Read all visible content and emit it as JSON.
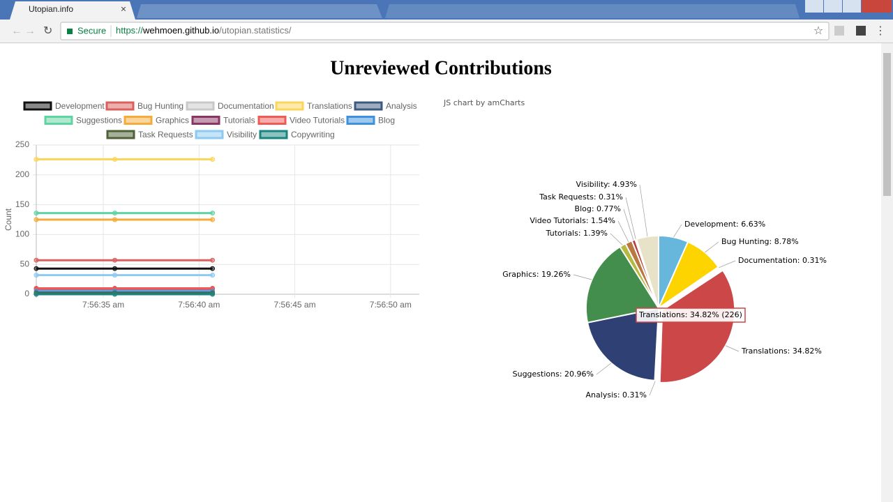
{
  "browser": {
    "tab_title": "Utopian.info",
    "secure": "Secure",
    "url_scheme": "https://",
    "url_host": "wehmoen.github.io",
    "url_path": "/utopian.statistics/"
  },
  "title": "Unreviewed Contributions",
  "credit": "JS chart by amCharts",
  "chart_data": [
    {
      "type": "line",
      "y_label": "Count",
      "x": [
        31.5,
        35.6,
        40.7
      ],
      "xlim": [
        31.5,
        51.5
      ],
      "xticks": [
        {
          "value": 35,
          "label": "7:56:35 am"
        },
        {
          "value": 40,
          "label": "7:56:40 am"
        },
        {
          "value": 45,
          "label": "7:56:45 am"
        },
        {
          "value": 50,
          "label": "7:56:50 am"
        }
      ],
      "ylim": [
        0,
        250
      ],
      "yticks": [
        0,
        50,
        100,
        150,
        200,
        250
      ],
      "grid": true,
      "series": [
        {
          "name": "Development",
          "color": "#111111",
          "values": [
            43,
            43,
            43
          ]
        },
        {
          "name": "Bug Hunting",
          "color": "#d9605c",
          "values": [
            57,
            57,
            57
          ]
        },
        {
          "name": "Documentation",
          "color": "#c8c8c8",
          "values": [
            2,
            2,
            2
          ]
        },
        {
          "name": "Translations",
          "color": "#fcd55a",
          "values": [
            226,
            226,
            226
          ]
        },
        {
          "name": "Analysis",
          "color": "#3c5a7f",
          "values": [
            2,
            2,
            2
          ]
        },
        {
          "name": "Suggestions",
          "color": "#5fd4a2",
          "values": [
            136,
            136,
            136
          ]
        },
        {
          "name": "Graphics",
          "color": "#f5ab3c",
          "values": [
            125,
            125,
            125
          ]
        },
        {
          "name": "Tutorials",
          "color": "#8a3563",
          "values": [
            9,
            9,
            9
          ]
        },
        {
          "name": "Video Tutorials",
          "color": "#ee5a55",
          "values": [
            10,
            10,
            10
          ]
        },
        {
          "name": "Blog",
          "color": "#3e92dc",
          "values": [
            5,
            5,
            5
          ]
        },
        {
          "name": "Task Requests",
          "color": "#4f6235",
          "values": [
            2,
            2,
            2
          ]
        },
        {
          "name": "Visibility",
          "color": "#8ec9f2",
          "values": [
            32,
            32,
            32
          ]
        },
        {
          "name": "Copywriting",
          "color": "#1a8580",
          "values": [
            0,
            0,
            0
          ]
        }
      ]
    },
    {
      "type": "pie",
      "categories": [
        "Development",
        "Bug Hunting",
        "Documentation",
        "Translations",
        "Analysis",
        "Suggestions",
        "Graphics",
        "Tutorials",
        "Video Tutorials",
        "Blog",
        "Task Requests",
        "Visibility"
      ],
      "values": [
        6.63,
        8.78,
        0.31,
        34.82,
        0.31,
        20.96,
        19.26,
        1.39,
        1.54,
        0.77,
        0.31,
        4.93
      ],
      "value_labels": [
        "Development: 6.63%",
        "Bug Hunting: 8.78%",
        "Documentation: 0.31%",
        "Translations: 34.82%",
        "Analysis: 0.31%",
        "Suggestions: 20.96%",
        "Graphics: 19.26%",
        "Tutorials: 1.39%",
        "Video Tutorials: 1.54%",
        "Blog: 0.77%",
        "Task Requests: 0.31%",
        "Visibility: 4.93%"
      ],
      "colors": [
        "#67b7dc",
        "#fdd400",
        "#84b761",
        "#cc4748",
        "#cd82ad",
        "#2f4074",
        "#448e4d",
        "#b7b83f",
        "#b9783f",
        "#b93e3d",
        "#913167",
        "#e8e3c8"
      ],
      "tooltip": "Translations: 34.82% (226)"
    }
  ]
}
